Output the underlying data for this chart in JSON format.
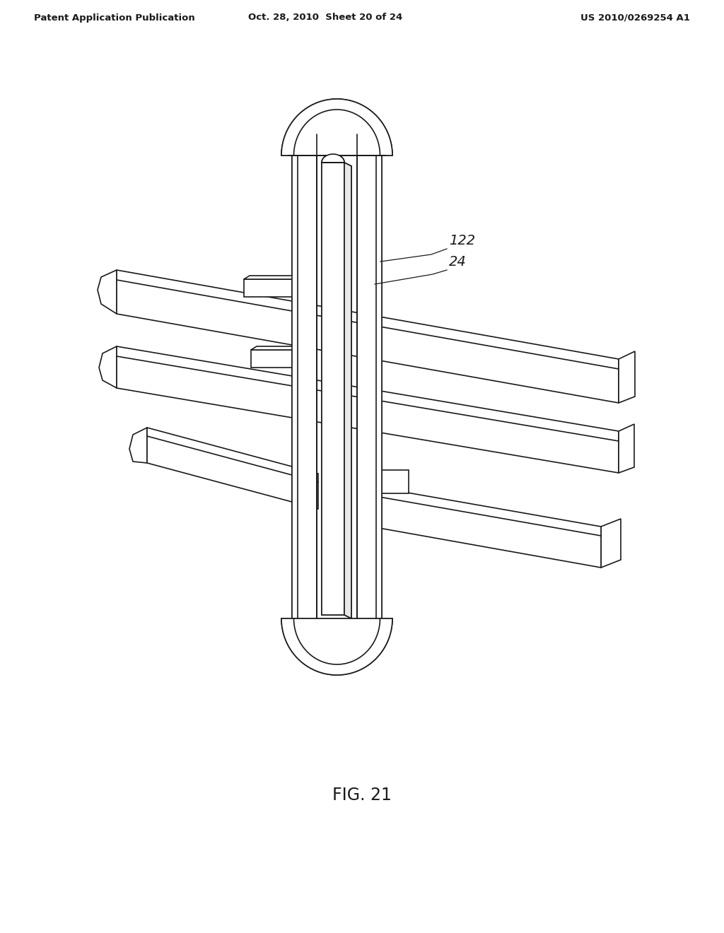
{
  "bg_color": "#ffffff",
  "line_color": "#1a1a1a",
  "header_left": "Patent Application Publication",
  "header_mid": "Oct. 28, 2010  Sheet 20 of 24",
  "header_right": "US 2010/0269254 A1",
  "fig_label": "FIG. 21",
  "label_122": "122",
  "label_24": "24",
  "header_fontsize": 9.5,
  "fig_label_fontsize": 17,
  "lw": 1.2
}
